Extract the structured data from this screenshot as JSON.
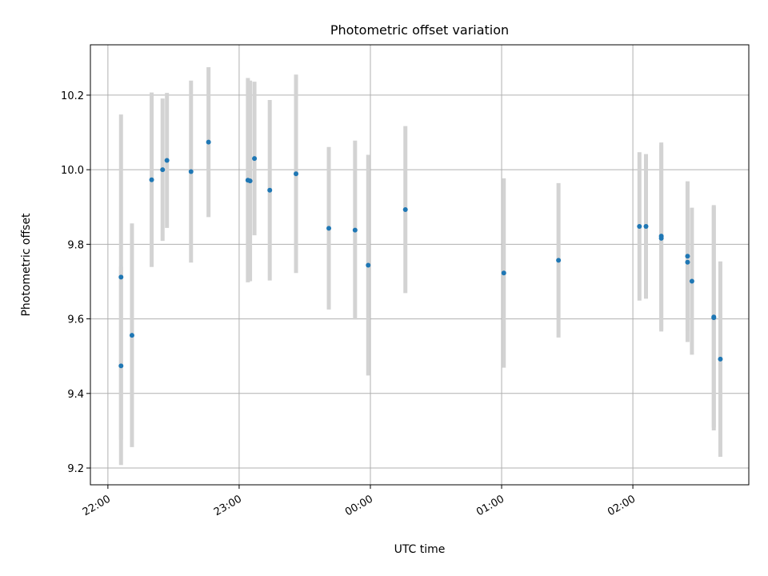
{
  "chart_data": {
    "type": "scatter",
    "title": "Photometric offset variation",
    "xlabel": "UTC time",
    "ylabel": "Photometric offset",
    "x_ticks": [
      "22:00",
      "23:00",
      "00:00",
      "01:00",
      "02:00"
    ],
    "x_tick_times": [
      "22:00",
      "23:00",
      "24:00",
      "25:00",
      "26:00"
    ],
    "y_ticks": [
      "9.2",
      "9.4",
      "9.6",
      "9.8",
      "10.0",
      "10.2"
    ],
    "xlim": [
      "21:52",
      "26:53"
    ],
    "ylim": [
      9.155,
      10.335
    ],
    "grid": true,
    "marker_color": "#1f77b4",
    "errorbar_color": "#d3d3d3",
    "series": [
      {
        "points": [
          {
            "x": "22:06",
            "y": 9.712,
            "err": 0.436
          },
          {
            "x": "22:06",
            "y": 9.474,
            "err": 0.266
          },
          {
            "x": "22:11",
            "y": 9.556,
            "err": 0.3
          },
          {
            "x": "22:20",
            "y": 9.973,
            "err": 0.234
          },
          {
            "x": "22:25",
            "y": 10.0,
            "err": 0.191
          },
          {
            "x": "22:27",
            "y": 10.025,
            "err": 0.181
          },
          {
            "x": "22:38",
            "y": 9.995,
            "err": 0.244
          },
          {
            "x": "22:46",
            "y": 10.074,
            "err": 0.201
          },
          {
            "x": "23:04",
            "y": 9.972,
            "err": 0.274
          },
          {
            "x": "23:05",
            "y": 9.97,
            "err": 0.269
          },
          {
            "x": "23:07",
            "y": 10.03,
            "err": 0.206
          },
          {
            "x": "23:14",
            "y": 9.945,
            "err": 0.242
          },
          {
            "x": "23:26",
            "y": 9.989,
            "err": 0.266
          },
          {
            "x": "23:41",
            "y": 9.843,
            "err": 0.218
          },
          {
            "x": "23:53",
            "y": 9.838,
            "err": 0.24
          },
          {
            "x": "23:59",
            "y": 9.744,
            "err": 0.296
          },
          {
            "x": "24:16",
            "y": 9.893,
            "err": 0.224
          },
          {
            "x": "25:01",
            "y": 9.723,
            "err": 0.254
          },
          {
            "x": "25:26",
            "y": 9.757,
            "err": 0.207
          },
          {
            "x": "26:03",
            "y": 9.848,
            "err": 0.199
          },
          {
            "x": "26:06",
            "y": 9.848,
            "err": 0.194
          },
          {
            "x": "26:13",
            "y": 9.822,
            "err": 0.251
          },
          {
            "x": "26:13",
            "y": 9.816,
            "err": 0.25
          },
          {
            "x": "26:25",
            "y": 9.768,
            "err": 0.201
          },
          {
            "x": "26:25",
            "y": 9.752,
            "err": 0.214
          },
          {
            "x": "26:27",
            "y": 9.701,
            "err": 0.197
          },
          {
            "x": "26:37",
            "y": 9.605,
            "err": 0.297
          },
          {
            "x": "26:37",
            "y": 9.603,
            "err": 0.302
          },
          {
            "x": "26:40",
            "y": 9.492,
            "err": 0.262
          }
        ]
      }
    ]
  }
}
